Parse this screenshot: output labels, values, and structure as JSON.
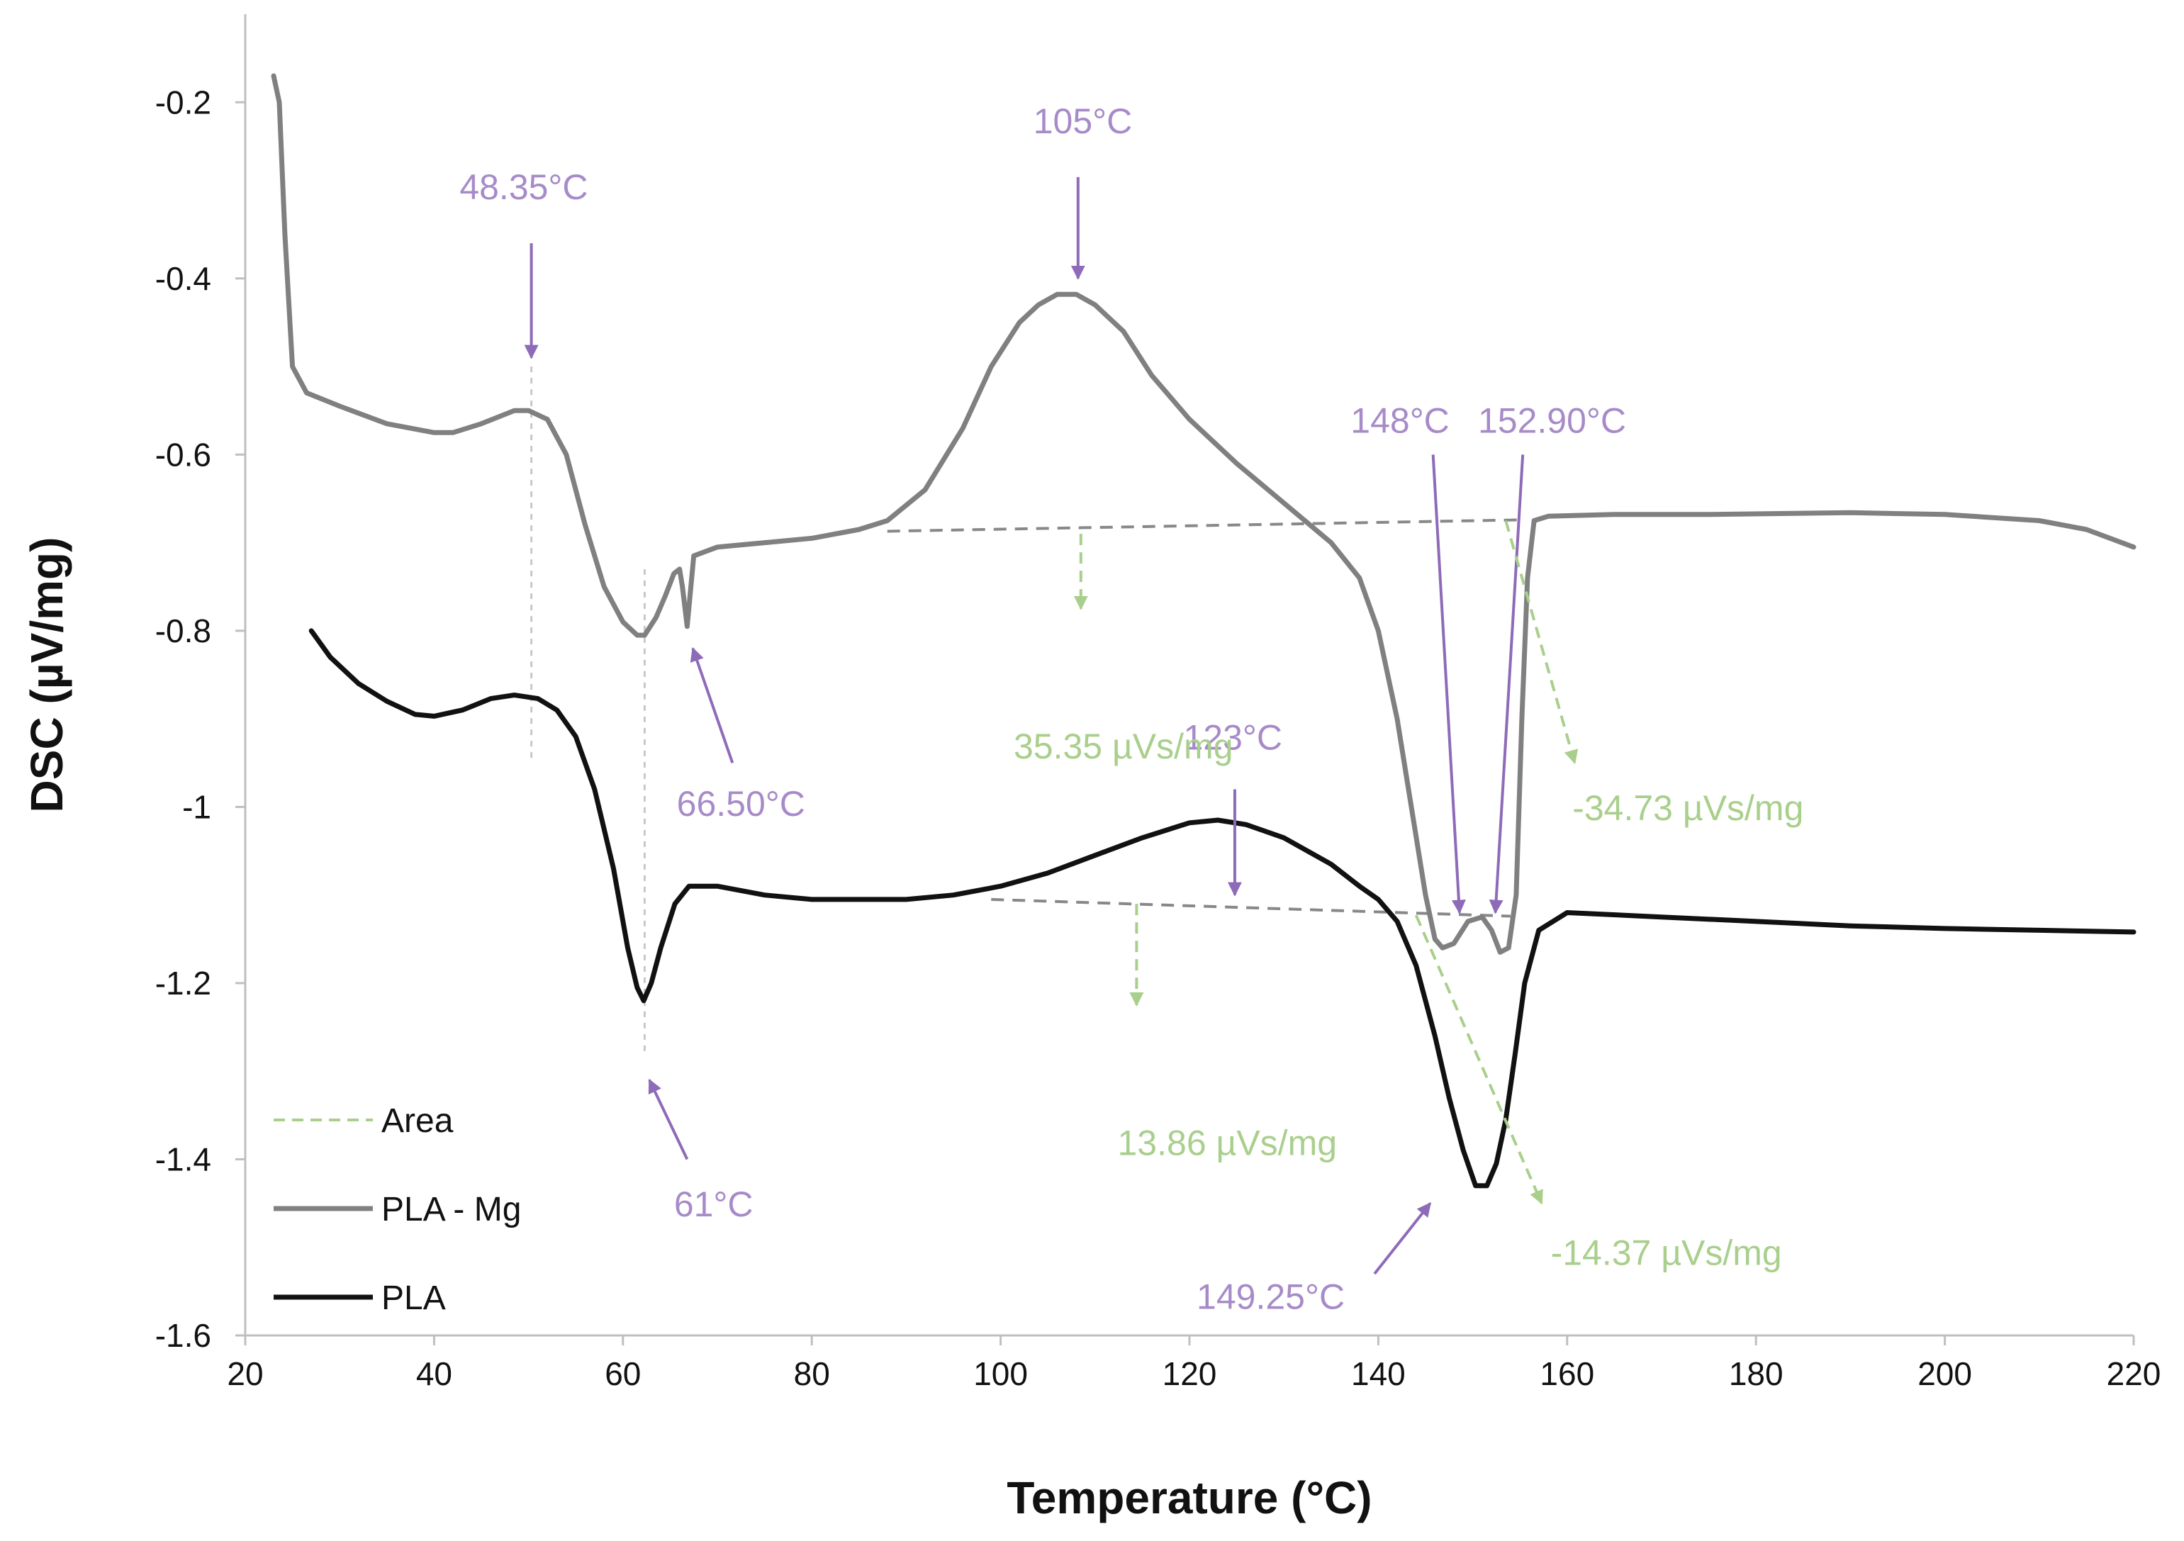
{
  "chart_data": {
    "type": "line",
    "xlabel": "Temperature (°C)",
    "ylabel": "DSC (µV/mg)",
    "xlim": [
      20,
      220
    ],
    "ylim": [
      -1.6,
      -0.1
    ],
    "x_ticks": [
      20,
      40,
      60,
      80,
      100,
      120,
      140,
      160,
      180,
      200,
      220
    ],
    "x_tick_labels": [
      "20",
      "40",
      "60",
      "80",
      "100",
      "120",
      "140",
      "160",
      "180",
      "200",
      "220"
    ],
    "y_ticks": [
      -0.2,
      -0.4,
      -0.6,
      -0.8,
      -1.0,
      -1.2,
      -1.4,
      -1.6
    ],
    "y_tick_labels": [
      "-0.2",
      "-0.4",
      "-0.6",
      "-0.8",
      "-1",
      "-1.2",
      "-1.4",
      "-1.6"
    ],
    "grid": false,
    "legend_position": "bottom-left",
    "legend": [
      {
        "label": "Area",
        "style": "dashed",
        "color": "#a9cf8c"
      },
      {
        "label": "PLA - Mg",
        "style": "solid",
        "color": "#808080"
      },
      {
        "label": "PLA",
        "style": "solid",
        "color": "#111111"
      }
    ],
    "series": [
      {
        "name": "PLA - Mg",
        "color": "#808080",
        "x": [
          23,
          23.6,
          24.2,
          25,
          26.5,
          30,
          35,
          40,
          42,
          45,
          48.5,
          50,
          52,
          54,
          56,
          58,
          60,
          61.5,
          62.3,
          63.5,
          64.5,
          65.4,
          66,
          66.3,
          66.8,
          67.5,
          70,
          75,
          80,
          85,
          88,
          92,
          96,
          99,
          102,
          104,
          106,
          108,
          110,
          113,
          116,
          120,
          125,
          130,
          135,
          138,
          140,
          142,
          143.5,
          145,
          146,
          146.8,
          148,
          149.5,
          151,
          152,
          152.9,
          153.8,
          154.6,
          155.2,
          155.8,
          156.5,
          158,
          165,
          175,
          190,
          200,
          210,
          215,
          220
        ],
        "y": [
          -0.17,
          -0.2,
          -0.35,
          -0.5,
          -0.53,
          -0.545,
          -0.565,
          -0.575,
          -0.575,
          -0.565,
          -0.55,
          -0.55,
          -0.56,
          -0.6,
          -0.68,
          -0.75,
          -0.79,
          -0.805,
          -0.805,
          -0.785,
          -0.76,
          -0.735,
          -0.73,
          -0.75,
          -0.795,
          -0.715,
          -0.705,
          -0.7,
          -0.695,
          -0.685,
          -0.675,
          -0.64,
          -0.57,
          -0.5,
          -0.45,
          -0.43,
          -0.418,
          -0.418,
          -0.43,
          -0.46,
          -0.51,
          -0.56,
          -0.61,
          -0.655,
          -0.7,
          -0.74,
          -0.8,
          -0.9,
          -1.0,
          -1.1,
          -1.15,
          -1.16,
          -1.155,
          -1.13,
          -1.125,
          -1.14,
          -1.165,
          -1.16,
          -1.1,
          -0.9,
          -0.74,
          -0.675,
          -0.67,
          -0.668,
          -0.668,
          -0.666,
          -0.668,
          -0.675,
          -0.685,
          -0.705
        ]
      },
      {
        "name": "PLA",
        "color": "#111111",
        "x": [
          27,
          29,
          32,
          35,
          38,
          40,
          43,
          46,
          48.5,
          51,
          53,
          55,
          57,
          59,
          60.5,
          61.5,
          62.2,
          63,
          64,
          65.5,
          67,
          70,
          75,
          80,
          85,
          90,
          95,
          100,
          105,
          110,
          115,
          120,
          123,
          126,
          130,
          135,
          138,
          140,
          142,
          144,
          146,
          147.5,
          149,
          150.3,
          151.5,
          152.5,
          153.5,
          154.5,
          155.5,
          157,
          160,
          170,
          180,
          190,
          200,
          210,
          220
        ],
        "y": [
          -0.8,
          -0.83,
          -0.86,
          -0.88,
          -0.895,
          -0.897,
          -0.89,
          -0.877,
          -0.873,
          -0.877,
          -0.89,
          -0.92,
          -0.98,
          -1.07,
          -1.16,
          -1.205,
          -1.22,
          -1.2,
          -1.16,
          -1.11,
          -1.09,
          -1.09,
          -1.1,
          -1.105,
          -1.105,
          -1.105,
          -1.1,
          -1.09,
          -1.075,
          -1.055,
          -1.035,
          -1.018,
          -1.015,
          -1.02,
          -1.035,
          -1.065,
          -1.09,
          -1.105,
          -1.13,
          -1.18,
          -1.26,
          -1.33,
          -1.39,
          -1.43,
          -1.43,
          -1.405,
          -1.355,
          -1.28,
          -1.2,
          -1.14,
          -1.12,
          -1.125,
          -1.13,
          -1.135,
          -1.138,
          -1.14,
          -1.142
        ]
      }
    ],
    "guide_lines": [
      {
        "name": "baseline-pla-mg",
        "kind": "baseline",
        "x1": 88,
        "y1": -0.687,
        "x2": 155.5,
        "y2": -0.674
      },
      {
        "name": "baseline-pla",
        "kind": "baseline",
        "x1": 99,
        "y1": -1.105,
        "x2": 154,
        "y2": -1.124
      },
      {
        "name": "vertical-48",
        "kind": "marker",
        "x1": 50.3,
        "y1": -0.5,
        "x2": 50.3,
        "y2": -0.945
      },
      {
        "name": "vertical-61",
        "kind": "marker",
        "x1": 62.3,
        "y1": -0.73,
        "x2": 62.3,
        "y2": -1.28
      }
    ],
    "annotations": [
      {
        "name": "annot-48-35",
        "text": "48.35°C",
        "color": "#a78bc9",
        "text_x": 49.5,
        "text_y": -0.31,
        "arrow_from": [
          50.3,
          -0.36
        ],
        "arrow_to": [
          50.3,
          -0.49
        ]
      },
      {
        "name": "annot-105",
        "text": "105°C",
        "color": "#a78bc9",
        "text_x": 108.7,
        "text_y": -0.235,
        "arrow_from": [
          108.2,
          -0.285
        ],
        "arrow_to": [
          108.2,
          -0.4
        ]
      },
      {
        "name": "annot-66-50",
        "text": "66.50°C",
        "color": "#a78bc9",
        "text_x": 72.5,
        "text_y": -1.01,
        "arrow_from": [
          71.6,
          -0.95
        ],
        "arrow_to": [
          67.4,
          -0.82
        ]
      },
      {
        "name": "annot-148",
        "text": "148°C",
        "color": "#a78bc9",
        "text_x": 142.3,
        "text_y": -0.575,
        "arrow_from": [
          145.8,
          -0.6
        ],
        "arrow_to": [
          148.6,
          -1.12
        ]
      },
      {
        "name": "annot-152-90",
        "text": "152.90°C",
        "color": "#a78bc9",
        "text_x": 158.4,
        "text_y": -0.575,
        "arrow_from": [
          155.3,
          -0.6
        ],
        "arrow_to": [
          152.4,
          -1.12
        ]
      },
      {
        "name": "annot-123",
        "text": "123°C",
        "color": "#a78bc9",
        "text_x": 124.6,
        "text_y": -0.935,
        "arrow_from": [
          124.8,
          -0.98
        ],
        "arrow_to": [
          124.8,
          -1.1
        ]
      },
      {
        "name": "annot-61",
        "text": "61°C",
        "color": "#a78bc9",
        "text_x": 69.6,
        "text_y": -1.465,
        "arrow_from": [
          66.8,
          -1.4
        ],
        "arrow_to": [
          62.8,
          -1.31
        ]
      },
      {
        "name": "annot-149-25",
        "text": "149.25°C",
        "color": "#a78bc9",
        "text_x": 128.6,
        "text_y": -1.57,
        "arrow_from": [
          139.6,
          -1.53
        ],
        "arrow_to": [
          145.5,
          -1.45
        ]
      },
      {
        "name": "annot-35-35",
        "text": "35.35 µVs/mg",
        "color": "#a9cf8c",
        "text_x": 113,
        "text_y": -0.945,
        "arrow_from": [
          108.5,
          -0.69
        ],
        "arrow_to": [
          108.5,
          -0.775
        ],
        "dashed": true
      },
      {
        "name": "annot-13-86",
        "text": "13.86 µVs/mg",
        "color": "#a9cf8c",
        "text_x": 124,
        "text_y": -1.395,
        "arrow_from": [
          114.4,
          -1.11
        ],
        "arrow_to": [
          114.4,
          -1.225
        ],
        "dashed": true
      },
      {
        "name": "annot-34-73",
        "text": "-34.73 µVs/mg",
        "color": "#a9cf8c",
        "text_x": 172.8,
        "text_y": -1.015,
        "arrow_from": [
          153.5,
          -0.675
        ],
        "arrow_to": [
          160.8,
          -0.95
        ],
        "dashed": true
      },
      {
        "name": "annot-14-37",
        "text": "-14.37 µVs/mg",
        "color": "#a9cf8c",
        "text_x": 170.5,
        "text_y": -1.52,
        "arrow_from": [
          144,
          -1.123
        ],
        "arrow_to": [
          157.3,
          -1.45
        ],
        "dashed": true
      }
    ]
  }
}
